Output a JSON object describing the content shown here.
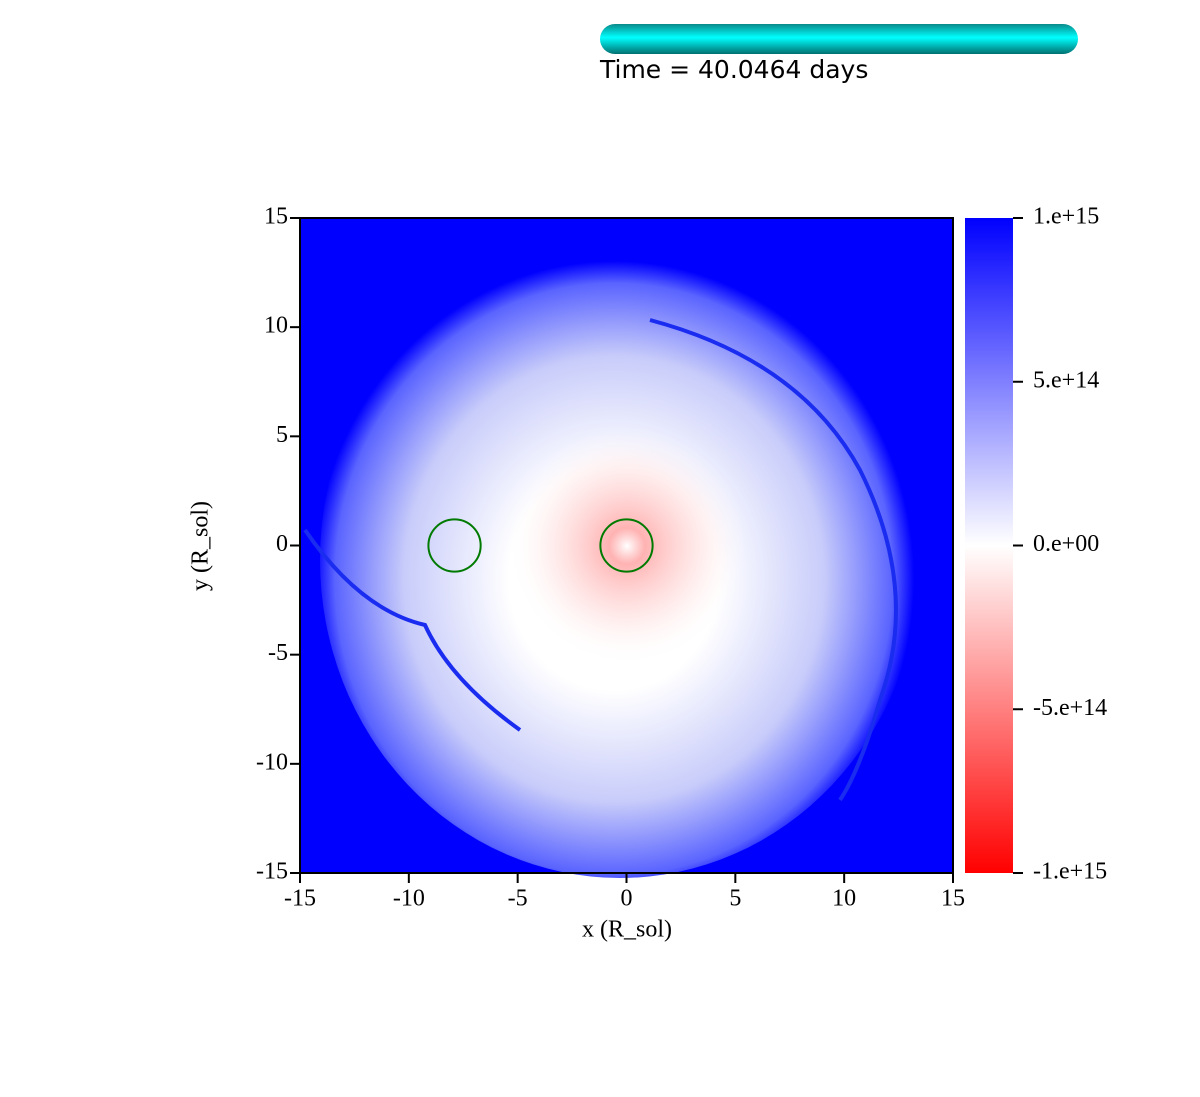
{
  "chart_data": {
    "type": "heatmap",
    "time_label": "Time = 40.0464 days",
    "xlabel": "x (R_sol)",
    "ylabel": "y (R_sol)",
    "xlim": [
      -15,
      15
    ],
    "ylim": [
      -15,
      15
    ],
    "xticks": [
      -15,
      -10,
      -5,
      0,
      5,
      10,
      15
    ],
    "yticks": [
      -15,
      -10,
      -5,
      0,
      5,
      10,
      15
    ],
    "clim": [
      -1000000000000000.0,
      1000000000000000.0
    ],
    "cticks": [
      {
        "value": 1000000000000000.0,
        "label": "1.e+15"
      },
      {
        "value": 500000000000000.0,
        "label": "5.e+14"
      },
      {
        "value": 0,
        "label": "0.e+00"
      },
      {
        "value": -500000000000000.0,
        "label": "-5.e+14"
      },
      {
        "value": -1000000000000000.0,
        "label": "-1.e+15"
      }
    ],
    "colormap": [
      "#ff0000",
      "#ffffff",
      "#0000ff"
    ],
    "circles": {
      "color": "#007a00",
      "x": [
        -7.9,
        0
      ],
      "y": [
        0,
        0
      ],
      "r": [
        1.2,
        1.2
      ]
    }
  }
}
